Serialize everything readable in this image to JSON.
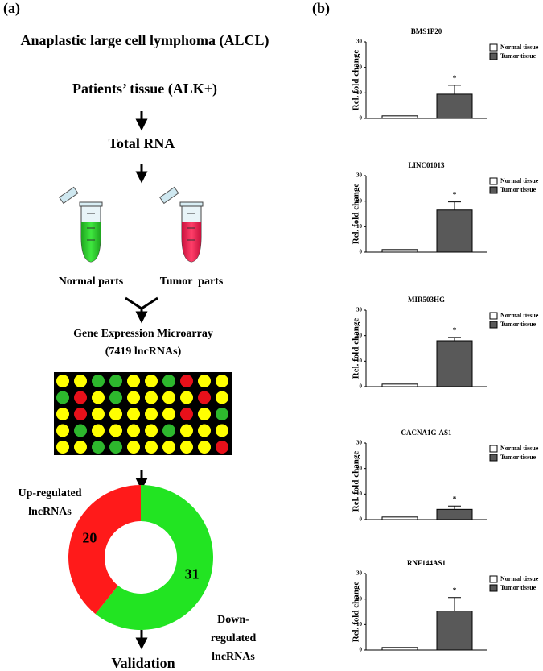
{
  "panel_labels": [
    "(a)",
    "(b)"
  ],
  "flow": {
    "title": "Anaplastic large cell lymphoma (ALCL)",
    "tissue": "Patients’ tissue (ALK+)",
    "rna": "Total RNA",
    "normal": "Normal parts",
    "tumor": "Tumor  parts",
    "microarray": [
      "Gene Expression Microarray",
      "(7419 lncRNAs)"
    ],
    "result": "Validation"
  },
  "chart_data": [
    {
      "type": "pie",
      "donut": true,
      "categories": [
        [
          "Down-",
          "regulated",
          "lncRNAs"
        ],
        [
          "Up-regulated",
          "lncRNAs"
        ]
      ],
      "values": [
        31,
        20
      ],
      "colors": [
        "#22e422",
        "#ff1a1a"
      ]
    },
    {
      "type": "bar",
      "title": "BMS1P20",
      "ylabel": "Rel. fold change",
      "categories": [
        null
      ],
      "ylim": [
        0,
        30
      ],
      "yticks": [
        0,
        10,
        20,
        30
      ],
      "annotation": "*",
      "series": [
        {
          "name": "Normal tissue",
          "color": "#ffffff",
          "values": [
            1
          ]
        },
        {
          "name": "Tumor tissue",
          "color": "#595959",
          "values": [
            9.5
          ],
          "errors": [
            3.5
          ]
        }
      ]
    },
    {
      "type": "bar",
      "title": "LINC01013",
      "ylabel": "Rel. fold change",
      "categories": [
        null
      ],
      "ylim": [
        0,
        30
      ],
      "yticks": [
        0,
        10,
        20,
        30
      ],
      "annotation": "*",
      "series": [
        {
          "name": "Normal tissue",
          "color": "#ffffff",
          "values": [
            1
          ]
        },
        {
          "name": "Tumor tissue",
          "color": "#595959",
          "values": [
            16.5
          ],
          "errors": [
            3.2
          ]
        }
      ]
    },
    {
      "type": "bar",
      "title": "MIR503HG",
      "ylabel": "Rel. fold change",
      "categories": [
        null
      ],
      "ylim": [
        0,
        30
      ],
      "yticks": [
        0,
        10,
        20,
        30
      ],
      "annotation": "*",
      "series": [
        {
          "name": "Normal tissue",
          "color": "#ffffff",
          "values": [
            1
          ]
        },
        {
          "name": "Tumor tissue",
          "color": "#595959",
          "values": [
            18
          ],
          "errors": [
            1.3
          ]
        }
      ]
    },
    {
      "type": "bar",
      "title": "CACNA1G-AS1",
      "ylabel": "Rel. fold change",
      "categories": [
        null
      ],
      "ylim": [
        0,
        30
      ],
      "yticks": [
        0,
        10,
        20,
        30
      ],
      "annotation": "*",
      "series": [
        {
          "name": "Normal tissue",
          "color": "#ffffff",
          "values": [
            1
          ]
        },
        {
          "name": "Tumor tissue",
          "color": "#595959",
          "values": [
            4
          ],
          "errors": [
            1.3
          ]
        }
      ]
    },
    {
      "type": "bar",
      "title": "RNF144AS1",
      "ylabel": "Rel. fold change",
      "categories": [
        null
      ],
      "ylim": [
        0,
        30
      ],
      "yticks": [
        0,
        10,
        20,
        30
      ],
      "annotation": "*",
      "series": [
        {
          "name": "Normal tissue",
          "color": "#ffffff",
          "values": [
            1
          ]
        },
        {
          "name": "Tumor tissue",
          "color": "#595959",
          "values": [
            15.3
          ],
          "errors": [
            5.3
          ]
        }
      ]
    }
  ]
}
